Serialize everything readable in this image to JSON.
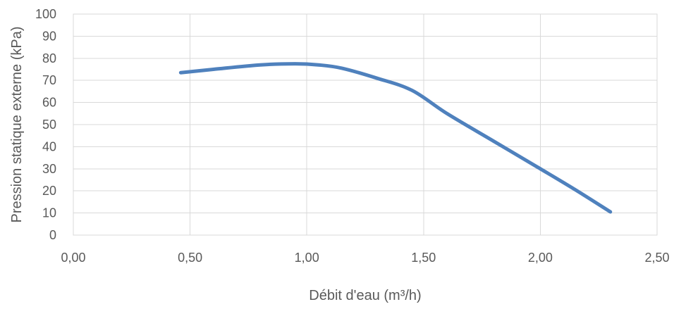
{
  "chart_data": {
    "type": "line",
    "title": "",
    "xlabel": "Débit d'eau (m³/h)",
    "ylabel": "Pression statique externe (kPa)",
    "xlim": [
      0,
      2.5
    ],
    "ylim": [
      0,
      100
    ],
    "x_ticks": [
      "0,00",
      "0,50",
      "1,00",
      "1,50",
      "2,00",
      "2,50"
    ],
    "y_ticks": [
      "0",
      "10",
      "20",
      "30",
      "40",
      "50",
      "60",
      "70",
      "80",
      "90",
      "100"
    ],
    "grid": true,
    "legend": "none",
    "series": [
      {
        "color": "#4f81bd",
        "x": [
          0.46,
          0.6,
          0.8,
          0.95,
          1.05,
          1.15,
          1.3,
          1.45,
          1.6,
          1.8,
          2.0,
          2.15,
          2.3
        ],
        "y": [
          73.5,
          75,
          77,
          77.5,
          77,
          75.5,
          71,
          65.5,
          55,
          42.5,
          30,
          20.5,
          10.5
        ]
      }
    ]
  }
}
